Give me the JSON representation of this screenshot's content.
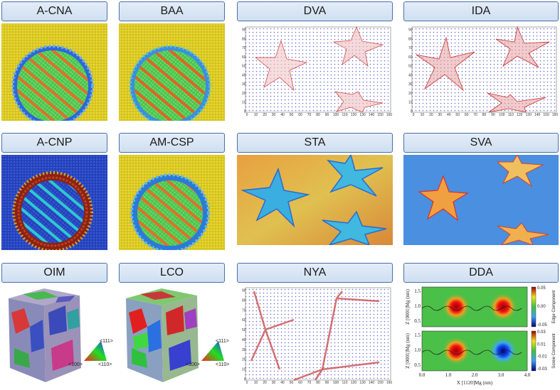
{
  "panels": {
    "acna": {
      "label": "A-CNA"
    },
    "baa": {
      "label": "BAA"
    },
    "dva": {
      "label": "DVA"
    },
    "ida": {
      "label": "IDA"
    },
    "acnp": {
      "label": "A-CNP"
    },
    "amcsp": {
      "label": "AM-CSP"
    },
    "sta": {
      "label": "STA"
    },
    "sva": {
      "label": "SVA"
    },
    "oim": {
      "label": "OIM",
      "legend": {
        "top": "<111>",
        "left": "<100>",
        "right": "<110>"
      }
    },
    "lco": {
      "label": "LCO",
      "legend": {
        "top": "<111>",
        "left": "<100>",
        "right": "<110>"
      }
    },
    "nya": {
      "label": "NYA"
    },
    "dda": {
      "label": "DDA",
      "top_ylabel": "Z [0001]Mg (nm)",
      "bottom_ylabel": "Z [0001]Mg (nm)",
      "xlabel": "X [1120]Mg (nm)",
      "x_ticks": [
        "0.0",
        "1.0",
        "2.0",
        "3.0",
        "4.0"
      ],
      "y_ticks": [
        "1.5",
        "1.0",
        "0.5"
      ],
      "top_colorbar": {
        "title": "Edge Component",
        "ticks": [
          "0.05",
          "0.00",
          "-0.05"
        ]
      },
      "bottom_colorbar": {
        "title": "Screw Component",
        "ticks": [
          "0.03",
          "0.01",
          "-0.01",
          "-0.03"
        ]
      }
    }
  },
  "vector_plot_axes": {
    "x_ticks": [
      "0",
      "10",
      "20",
      "30",
      "40",
      "50",
      "60",
      "70",
      "80",
      "90",
      "100",
      "110",
      "120",
      "130",
      "140",
      "150",
      "160"
    ],
    "y_ticks": [
      "0",
      "10",
      "20",
      "30",
      "40",
      "50",
      "60",
      "70",
      "80",
      "90"
    ]
  },
  "colors": {
    "label_border": "#4a70a6",
    "cna_background": "#d4c21c",
    "cnp_background": "#2340b8",
    "sva_background": "#4a8fe0"
  }
}
